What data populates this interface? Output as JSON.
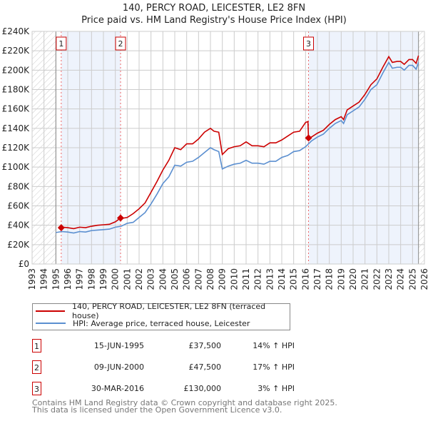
{
  "title_line1": "140, PERCY ROAD, LEICESTER, LE2 8FN",
  "title_line2": "Price paid vs. HM Land Registry's House Price Index (HPI)",
  "colors": {
    "property": "#cc0000",
    "hpi": "#5b8fd0",
    "shade": "#eef3fc",
    "grid": "#cccccc"
  },
  "chart_data": {
    "type": "line",
    "title": "Price paid vs. HM Land Registry's House Price Index (HPI)",
    "xlim": [
      1993,
      2026
    ],
    "ylim": [
      0,
      240000
    ],
    "x_ticks": [
      "1993",
      "1994",
      "1995",
      "1996",
      "1997",
      "1998",
      "1999",
      "2000",
      "2001",
      "2002",
      "2003",
      "2004",
      "2005",
      "2006",
      "2007",
      "2008",
      "2009",
      "2010",
      "2011",
      "2012",
      "2013",
      "2014",
      "2015",
      "2016",
      "2017",
      "2018",
      "2019",
      "2020",
      "2021",
      "2022",
      "2023",
      "2024",
      "2025",
      "2026"
    ],
    "y_ticks": [
      "£0",
      "£20K",
      "£40K",
      "£60K",
      "£80K",
      "£100K",
      "£120K",
      "£140K",
      "£160K",
      "£180K",
      "£200K",
      "£220K",
      "£240K"
    ],
    "data_range": [
      1995.0,
      2025.5
    ],
    "grid": true,
    "series": [
      {
        "name": "140, PERCY ROAD, LEICESTER, LE2 8FN (terraced house)",
        "color": "#cc0000",
        "points": [
          [
            1995.45,
            37.5
          ],
          [
            1995.5,
            38
          ],
          [
            1996,
            37.5
          ],
          [
            1996.5,
            36.5
          ],
          [
            1997,
            38
          ],
          [
            1997.5,
            37.5
          ],
          [
            1998,
            39
          ],
          [
            1998.5,
            40
          ],
          [
            1999,
            40.5
          ],
          [
            1999.5,
            41
          ],
          [
            2000,
            43.5
          ],
          [
            2000.44,
            47.5
          ],
          [
            2000.5,
            47
          ],
          [
            2001,
            48
          ],
          [
            2001.5,
            52
          ],
          [
            2002,
            57
          ],
          [
            2002.5,
            63
          ],
          [
            2003,
            74
          ],
          [
            2003.5,
            85
          ],
          [
            2004,
            97
          ],
          [
            2004.5,
            107
          ],
          [
            2005,
            120
          ],
          [
            2005.5,
            118
          ],
          [
            2006,
            124
          ],
          [
            2006.5,
            124
          ],
          [
            2007,
            129
          ],
          [
            2007.5,
            136
          ],
          [
            2008,
            140
          ],
          [
            2008.3,
            137
          ],
          [
            2008.7,
            136
          ],
          [
            2009,
            113
          ],
          [
            2009.5,
            119
          ],
          [
            2010,
            121
          ],
          [
            2010.5,
            122
          ],
          [
            2011,
            126
          ],
          [
            2011.5,
            122
          ],
          [
            2012,
            122
          ],
          [
            2012.5,
            121
          ],
          [
            2013,
            125
          ],
          [
            2013.5,
            125
          ],
          [
            2014,
            128
          ],
          [
            2014.5,
            132
          ],
          [
            2015,
            136
          ],
          [
            2015.5,
            137
          ],
          [
            2016,
            146
          ],
          [
            2016.2,
            147
          ],
          [
            2016.25,
            130
          ],
          [
            2016.5,
            131
          ],
          [
            2017,
            135
          ],
          [
            2017.5,
            138
          ],
          [
            2018,
            144
          ],
          [
            2018.5,
            149
          ],
          [
            2019,
            152
          ],
          [
            2019.2,
            149
          ],
          [
            2019.5,
            159
          ],
          [
            2020,
            163
          ],
          [
            2020.5,
            167
          ],
          [
            2021,
            175
          ],
          [
            2021.5,
            185
          ],
          [
            2022,
            191
          ],
          [
            2022.5,
            203
          ],
          [
            2023,
            214
          ],
          [
            2023.3,
            208
          ],
          [
            2023.7,
            209
          ],
          [
            2024,
            209
          ],
          [
            2024.3,
            206
          ],
          [
            2024.7,
            211
          ],
          [
            2025,
            211
          ],
          [
            2025.3,
            207
          ],
          [
            2025.5,
            215
          ]
        ]
      },
      {
        "name": "HPI: Average price, terraced house, Leicester",
        "color": "#5b8fd0",
        "points": [
          [
            1995,
            32.5
          ],
          [
            1995.5,
            33.5
          ],
          [
            1996,
            33
          ],
          [
            1996.5,
            32
          ],
          [
            1997,
            33.5
          ],
          [
            1997.5,
            33
          ],
          [
            1998,
            34.5
          ],
          [
            1998.5,
            35
          ],
          [
            1999,
            35.5
          ],
          [
            1999.5,
            36
          ],
          [
            2000,
            38
          ],
          [
            2000.5,
            39
          ],
          [
            2001,
            42
          ],
          [
            2001.5,
            43
          ],
          [
            2002,
            48
          ],
          [
            2002.5,
            53
          ],
          [
            2003,
            62
          ],
          [
            2003.5,
            72
          ],
          [
            2004,
            83
          ],
          [
            2004.5,
            90
          ],
          [
            2005,
            102
          ],
          [
            2005.5,
            101
          ],
          [
            2006,
            105
          ],
          [
            2006.5,
            106
          ],
          [
            2007,
            110
          ],
          [
            2007.5,
            115
          ],
          [
            2008,
            120
          ],
          [
            2008.3,
            118
          ],
          [
            2008.7,
            116
          ],
          [
            2009,
            98
          ],
          [
            2009.5,
            101
          ],
          [
            2010,
            103
          ],
          [
            2010.5,
            104
          ],
          [
            2011,
            107
          ],
          [
            2011.5,
            104
          ],
          [
            2012,
            104
          ],
          [
            2012.5,
            103
          ],
          [
            2013,
            106
          ],
          [
            2013.5,
            106
          ],
          [
            2014,
            110
          ],
          [
            2014.5,
            112
          ],
          [
            2015,
            116
          ],
          [
            2015.5,
            117
          ],
          [
            2016,
            121
          ],
          [
            2016.5,
            127
          ],
          [
            2017,
            131
          ],
          [
            2017.5,
            134
          ],
          [
            2018,
            140
          ],
          [
            2018.5,
            145
          ],
          [
            2019,
            148
          ],
          [
            2019.2,
            145
          ],
          [
            2019.5,
            154
          ],
          [
            2020,
            158
          ],
          [
            2020.5,
            162
          ],
          [
            2021,
            170
          ],
          [
            2021.5,
            180
          ],
          [
            2022,
            185
          ],
          [
            2022.5,
            197
          ],
          [
            2023,
            208
          ],
          [
            2023.3,
            202
          ],
          [
            2023.7,
            203
          ],
          [
            2024,
            203
          ],
          [
            2024.3,
            200
          ],
          [
            2024.7,
            205
          ],
          [
            2025,
            205
          ],
          [
            2025.3,
            201
          ],
          [
            2025.5,
            208
          ]
        ]
      }
    ],
    "value_units": "£ thousands",
    "sales": [
      {
        "label": "1",
        "x": 1995.45,
        "value": 37.5
      },
      {
        "label": "2",
        "x": 2000.44,
        "value": 47.5
      },
      {
        "label": "3",
        "x": 2016.25,
        "value": 130
      }
    ]
  },
  "legend": {
    "property": "140, PERCY ROAD, LEICESTER, LE2 8FN (terraced house)",
    "hpi": "HPI: Average price, terraced house, Leicester"
  },
  "transactions": [
    {
      "num": "1",
      "date": "15-JUN-1995",
      "price": "£37,500",
      "hpi": "14% ↑ HPI"
    },
    {
      "num": "2",
      "date": "09-JUN-2000",
      "price": "£47,500",
      "hpi": "17% ↑ HPI"
    },
    {
      "num": "3",
      "date": "30-MAR-2016",
      "price": "£130,000",
      "hpi": "3% ↑ HPI"
    }
  ],
  "footer": {
    "line1": "Contains HM Land Registry data © Crown copyright and database right 2025.",
    "line2": "This data is licensed under the Open Government Licence v3.0."
  }
}
